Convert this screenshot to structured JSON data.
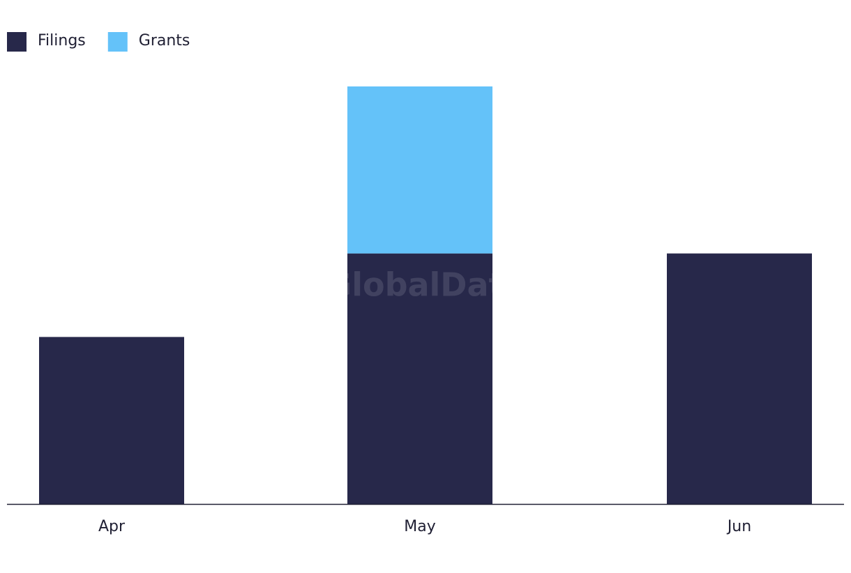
{
  "chart_data": {
    "type": "stacked-bar",
    "categories": [
      "Apr",
      "May",
      "Jun"
    ],
    "series": [
      {
        "name": "Filings",
        "color": "#27284a",
        "values": [
          2,
          3,
          3
        ]
      },
      {
        "name": "Grants",
        "color": "#64c2f9",
        "values": [
          0,
          2,
          0
        ]
      }
    ],
    "watermark": "GlobalData",
    "legend": "top-left"
  }
}
